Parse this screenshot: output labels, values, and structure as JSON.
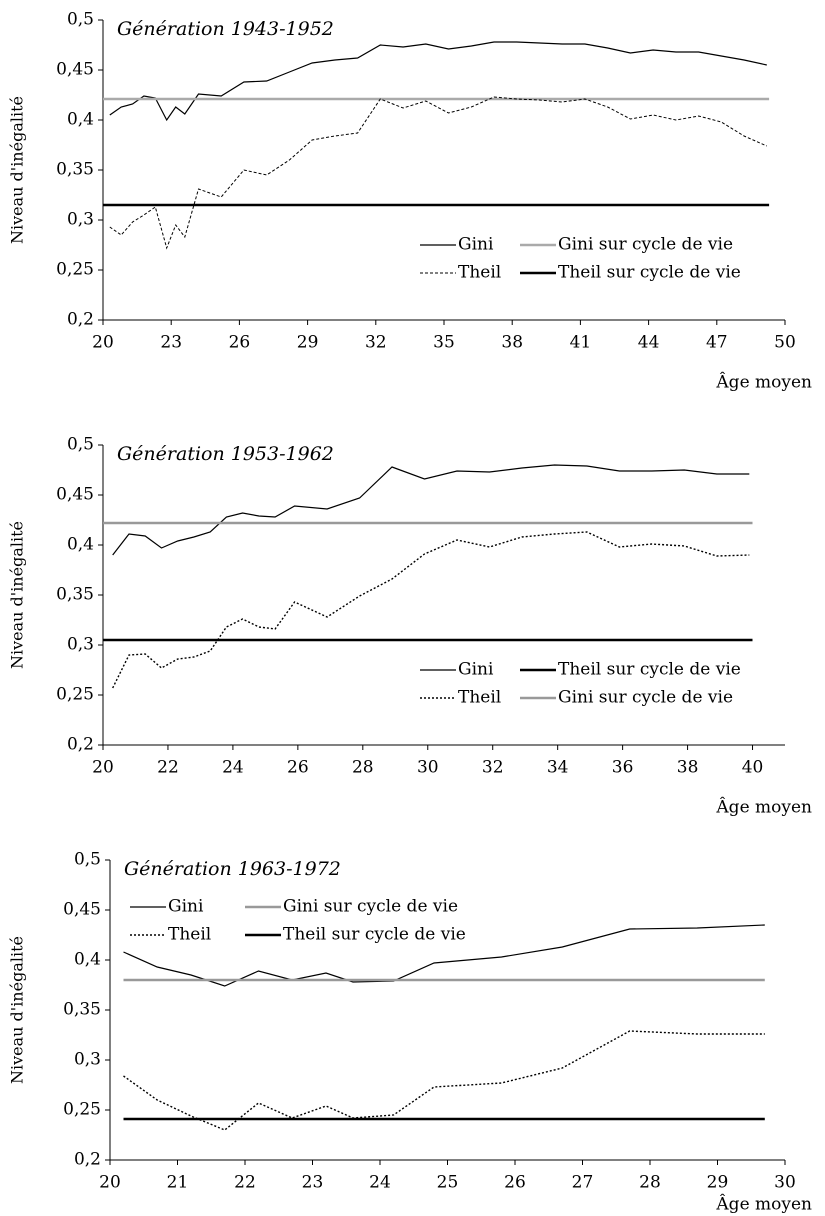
{
  "chart_data": [
    {
      "type": "line",
      "title": "Génération 1943-1952",
      "y_label": "Niveau d'inégalité",
      "x_label": "Âge moyen",
      "x": [
        20.3,
        20.8,
        21.3,
        21.8,
        22.3,
        22.8,
        23.2,
        23.6,
        24.2,
        25.2,
        26.2,
        27.2,
        28.2,
        29.2,
        30.2,
        31.2,
        32.2,
        33.2,
        34.2,
        35.2,
        36.2,
        37.2,
        38.2,
        39.2,
        40.2,
        41.2,
        42.2,
        43.2,
        44.2,
        45.2,
        46.2,
        47.2,
        48.2,
        49.2
      ],
      "series": [
        {
          "name": "Gini",
          "color": "#000000",
          "style": "solid",
          "values": [
            0.405,
            0.413,
            0.416,
            0.424,
            0.422,
            0.4,
            0.413,
            0.406,
            0.426,
            0.424,
            0.438,
            0.439,
            0.448,
            0.457,
            0.46,
            0.462,
            0.475,
            0.473,
            0.476,
            0.471,
            0.474,
            0.478,
            0.478,
            0.477,
            0.476,
            0.476,
            0.472,
            0.467,
            0.47,
            0.468,
            0.468,
            0.464,
            0.46,
            0.455
          ]
        },
        {
          "name": "Gini sur cycle de vie",
          "color": "#aaaaaa",
          "style": "thick",
          "x": [
            20,
            49.3
          ],
          "values": [
            0.421,
            0.421
          ]
        },
        {
          "name": "Theil",
          "color": "#000000",
          "style": "dashed",
          "values": [
            0.293,
            0.285,
            0.298,
            0.305,
            0.313,
            0.272,
            0.295,
            0.283,
            0.331,
            0.323,
            0.35,
            0.345,
            0.36,
            0.38,
            0.384,
            0.387,
            0.421,
            0.412,
            0.419,
            0.407,
            0.413,
            0.423,
            0.421,
            0.42,
            0.418,
            0.421,
            0.413,
            0.401,
            0.405,
            0.4,
            0.404,
            0.398,
            0.384,
            0.374
          ]
        },
        {
          "name": "Theil sur cycle de vie",
          "color": "#000000",
          "style": "thick",
          "x": [
            20,
            49.3
          ],
          "values": [
            0.315,
            0.315
          ]
        }
      ],
      "xlim": [
        20,
        50
      ],
      "xticks": [
        20,
        23,
        26,
        29,
        32,
        35,
        38,
        41,
        44,
        47,
        50
      ],
      "ylim": [
        0.2,
        0.5
      ],
      "yticks": [
        {
          "value": 0.2,
          "label": "0,2"
        },
        {
          "value": 0.25,
          "label": "0,25"
        },
        {
          "value": 0.3,
          "label": "0,3"
        },
        {
          "value": 0.35,
          "label": "0,35"
        },
        {
          "value": 0.4,
          "label": "0,4"
        },
        {
          "value": 0.45,
          "label": "0,45"
        },
        {
          "value": 0.5,
          "label": "0,5"
        }
      ],
      "legend": "lower right"
    },
    {
      "type": "line",
      "title": "Génération 1953-1962",
      "y_label": "Niveau d'inégalité",
      "x_label": "Âge moyen",
      "x": [
        20.3,
        20.8,
        21.3,
        21.8,
        22.3,
        22.8,
        23.3,
        23.8,
        24.3,
        24.8,
        25.3,
        25.9,
        26.9,
        27.9,
        28.9,
        29.9,
        30.9,
        31.9,
        32.9,
        33.9,
        34.9,
        35.9,
        36.9,
        37.9,
        38.9,
        39.9
      ],
      "series": [
        {
          "name": "Gini",
          "color": "#000000",
          "style": "solid",
          "values": [
            0.39,
            0.411,
            0.409,
            0.397,
            0.404,
            0.408,
            0.413,
            0.428,
            0.432,
            0.429,
            0.428,
            0.439,
            0.436,
            0.447,
            0.478,
            0.466,
            0.474,
            0.473,
            0.477,
            0.48,
            0.479,
            0.474,
            0.474,
            0.475,
            0.471,
            0.471
          ]
        },
        {
          "name": "Theil sur cycle de vie",
          "color": "#000000",
          "style": "thick",
          "x": [
            20,
            40
          ],
          "values": [
            0.305,
            0.305
          ]
        },
        {
          "name": "Theil",
          "color": "#000000",
          "style": "dotted",
          "values": [
            0.257,
            0.29,
            0.291,
            0.277,
            0.286,
            0.288,
            0.294,
            0.318,
            0.326,
            0.318,
            0.316,
            0.343,
            0.328,
            0.349,
            0.366,
            0.391,
            0.405,
            0.398,
            0.408,
            0.411,
            0.413,
            0.398,
            0.401,
            0.399,
            0.389,
            0.39
          ]
        },
        {
          "name": "Gini sur cycle de vie",
          "color": "#999999",
          "style": "thick",
          "x": [
            20,
            40
          ],
          "values": [
            0.422,
            0.422
          ]
        }
      ],
      "xlim": [
        20,
        41
      ],
      "xticks": [
        20,
        22,
        24,
        26,
        28,
        30,
        32,
        34,
        36,
        38,
        40
      ],
      "ylim": [
        0.2,
        0.5
      ],
      "yticks": [
        {
          "value": 0.2,
          "label": "0,2"
        },
        {
          "value": 0.25,
          "label": "0,25"
        },
        {
          "value": 0.3,
          "label": "0,3"
        },
        {
          "value": 0.35,
          "label": "0,35"
        },
        {
          "value": 0.4,
          "label": "0,4"
        },
        {
          "value": 0.45,
          "label": "0,45"
        },
        {
          "value": 0.5,
          "label": "0,5"
        }
      ],
      "legend": "lower right"
    },
    {
      "type": "line",
      "title": "Génération 1963-1972",
      "y_label": "Niveau d'inégalité",
      "x_label": "Âge moyen",
      "x": [
        20.2,
        20.7,
        21.2,
        21.7,
        22.2,
        22.7,
        23.2,
        23.6,
        24.2,
        24.8,
        25.8,
        26.7,
        27.7,
        28.7,
        29.7
      ],
      "series": [
        {
          "name": "Gini",
          "color": "#000000",
          "style": "solid",
          "values": [
            0.408,
            0.393,
            0.385,
            0.374,
            0.389,
            0.38,
            0.387,
            0.378,
            0.379,
            0.397,
            0.403,
            0.413,
            0.431,
            0.432,
            0.435
          ]
        },
        {
          "name": "Gini sur cycle de vie",
          "color": "#999999",
          "style": "thick",
          "x": [
            20.2,
            29.7
          ],
          "values": [
            0.38,
            0.38
          ]
        },
        {
          "name": "Theil",
          "color": "#000000",
          "style": "dotted",
          "values": [
            0.284,
            0.26,
            0.244,
            0.23,
            0.257,
            0.242,
            0.254,
            0.242,
            0.245,
            0.273,
            0.277,
            0.292,
            0.329,
            0.326,
            0.326
          ]
        },
        {
          "name": "Theil sur cycle de vie",
          "color": "#000000",
          "style": "thick",
          "x": [
            20.2,
            29.7
          ],
          "values": [
            0.241,
            0.241
          ]
        }
      ],
      "xlim": [
        20,
        30
      ],
      "xticks": [
        20,
        21,
        22,
        23,
        24,
        25,
        26,
        27,
        28,
        29,
        30
      ],
      "ylim": [
        0.2,
        0.5
      ],
      "yticks": [
        {
          "value": 0.2,
          "label": "0,2"
        },
        {
          "value": 0.25,
          "label": "0,25"
        },
        {
          "value": 0.3,
          "label": "0,3"
        },
        {
          "value": 0.35,
          "label": "0,35"
        },
        {
          "value": 0.4,
          "label": "0,4"
        },
        {
          "value": 0.45,
          "label": "0,45"
        },
        {
          "value": 0.5,
          "label": "0,5"
        }
      ],
      "legend": "upper left"
    }
  ]
}
